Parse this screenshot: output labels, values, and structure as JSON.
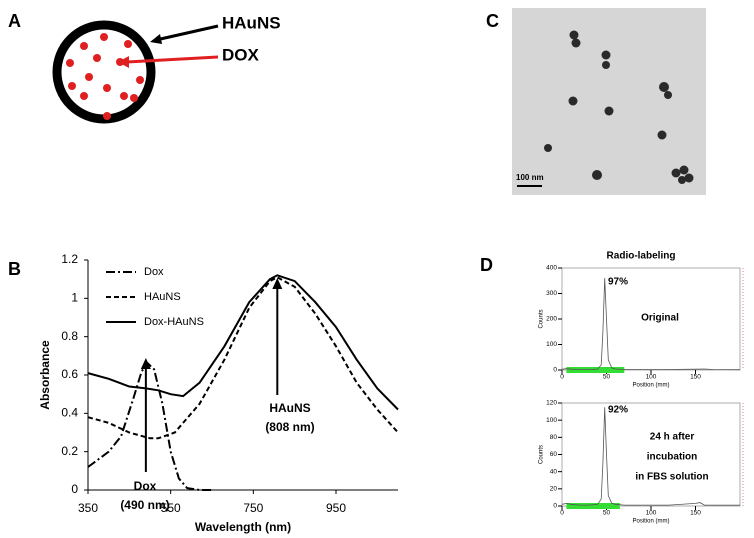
{
  "panel_labels": [
    "A",
    "B",
    "C",
    "D"
  ],
  "schematic": {
    "shell_label": "HAuNS",
    "drug_label": "DOX"
  },
  "micrograph": {
    "scale_bar": "100 nm"
  },
  "chart_data": [
    {
      "type": "line",
      "x_label": "Wavelength (nm)",
      "y_label": "Absorbance",
      "xlim": [
        350,
        1100
      ],
      "ylim": [
        0,
        1.2
      ],
      "xticks": [
        350,
        550,
        750,
        950
      ],
      "yticks": [
        0,
        0.2,
        0.4,
        0.6,
        0.8,
        1,
        1.2
      ],
      "legend": "upper left",
      "series": [
        {
          "name": "Dox",
          "color": "#000000",
          "dash": "dash-dot",
          "x": [
            350,
            400,
            430,
            460,
            480,
            495,
            510,
            530,
            550,
            570,
            590,
            620,
            650
          ],
          "values": [
            0.12,
            0.2,
            0.28,
            0.48,
            0.62,
            0.66,
            0.63,
            0.45,
            0.2,
            0.06,
            0.01,
            0,
            0
          ]
        },
        {
          "name": "HAuNS",
          "color": "#000000",
          "dash": "dashed",
          "x": [
            350,
            400,
            450,
            500,
            520,
            560,
            620,
            680,
            740,
            790,
            808,
            850,
            900,
            950,
            1000,
            1050,
            1100
          ],
          "values": [
            0.38,
            0.35,
            0.3,
            0.27,
            0.27,
            0.3,
            0.45,
            0.68,
            0.95,
            1.09,
            1.11,
            1.06,
            0.92,
            0.75,
            0.56,
            0.42,
            0.3
          ]
        },
        {
          "name": "Dox-HAuNS",
          "color": "#000000",
          "dash": "solid",
          "x": [
            350,
            400,
            450,
            490,
            520,
            550,
            580,
            620,
            680,
            740,
            790,
            808,
            850,
            900,
            950,
            1000,
            1050,
            1100
          ],
          "values": [
            0.61,
            0.58,
            0.54,
            0.53,
            0.52,
            0.5,
            0.49,
            0.56,
            0.75,
            0.98,
            1.1,
            1.12,
            1.09,
            0.98,
            0.85,
            0.68,
            0.53,
            0.42
          ]
        }
      ],
      "annotations": [
        {
          "text": [
            "HAuNS",
            "(808 nm)"
          ],
          "x": 808
        },
        {
          "text": [
            "Dox",
            "(490 nm)"
          ],
          "x": 490
        }
      ]
    },
    {
      "type": "line",
      "title": "Radio-labeling",
      "x_label": "Position (mm)",
      "y_label": "Counts",
      "xlim": [
        0,
        200
      ],
      "ylim": [
        0,
        400
      ],
      "xticks": [
        0,
        50,
        100,
        150
      ],
      "yticks": [
        0,
        100,
        200,
        300,
        400
      ],
      "highlight": {
        "range": [
          5,
          70
        ],
        "color": "#33dd33"
      },
      "series": [
        {
          "color": "#555555",
          "x": [
            0,
            5,
            10,
            20,
            30,
            40,
            44,
            46,
            48,
            50,
            52,
            56,
            60,
            70,
            80,
            100,
            120,
            150,
            160,
            170,
            200
          ],
          "values": [
            3,
            5,
            3,
            2,
            2,
            3,
            20,
            150,
            360,
            200,
            40,
            8,
            4,
            2,
            2,
            2,
            2,
            3,
            4,
            2,
            1
          ]
        }
      ],
      "annotations": [
        {
          "text": [
            "97%"
          ]
        },
        {
          "text": [
            "Original"
          ]
        }
      ]
    },
    {
      "type": "line",
      "x_label": "Position (mm)",
      "y_label": "Counts",
      "xlim": [
        0,
        200
      ],
      "ylim": [
        0,
        120
      ],
      "xticks": [
        0,
        50,
        100,
        150
      ],
      "yticks": [
        0,
        20,
        40,
        60,
        80,
        100,
        120
      ],
      "highlight": {
        "range": [
          5,
          65
        ],
        "color": "#33dd33"
      },
      "series": [
        {
          "color": "#555555",
          "x": [
            0,
            5,
            10,
            20,
            30,
            40,
            44,
            46,
            48,
            50,
            52,
            56,
            60,
            70,
            80,
            100,
            120,
            150,
            155,
            160,
            200
          ],
          "values": [
            2,
            3,
            2,
            1,
            1,
            2,
            8,
            50,
            115,
            60,
            12,
            3,
            2,
            1,
            1,
            1,
            1,
            3,
            4,
            1,
            1
          ]
        }
      ],
      "annotations": [
        {
          "text": [
            "92%"
          ]
        },
        {
          "text": [
            "24 h after",
            "incubation",
            "in FBS solution"
          ]
        }
      ]
    }
  ]
}
